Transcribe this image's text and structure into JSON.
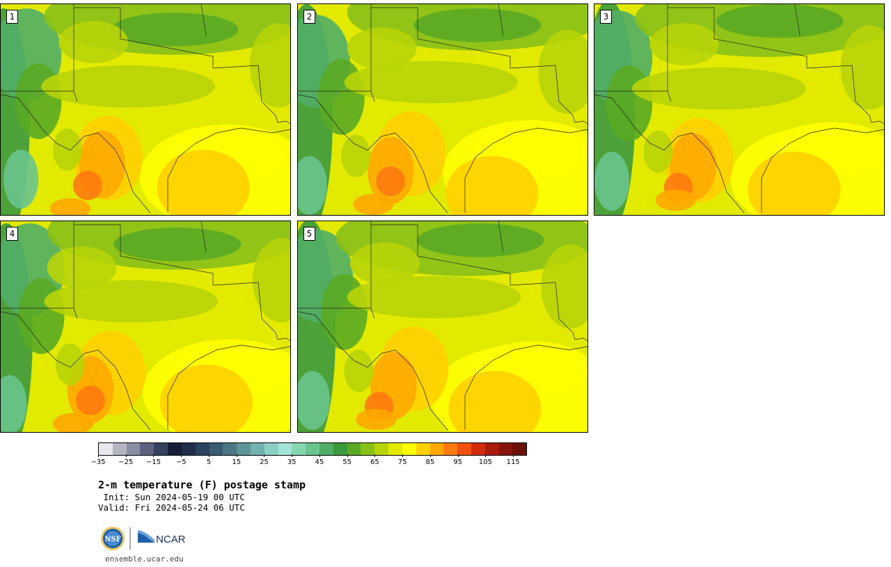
{
  "panels": [
    {
      "label": "1"
    },
    {
      "label": "2"
    },
    {
      "label": "3"
    },
    {
      "label": "4"
    },
    {
      "label": "5"
    }
  ],
  "colorbar": {
    "colors": [
      "#e6e8ee",
      "#b4b6c4",
      "#8a8ea2",
      "#5c6280",
      "#33405e",
      "#141e38",
      "#1e2e4a",
      "#2a4460",
      "#3a5c72",
      "#4a7884",
      "#5c9498",
      "#74b2b0",
      "#8ccdc4",
      "#a4e4d6",
      "#86d6b0",
      "#6ac48e",
      "#52ae66",
      "#3c9a3e",
      "#5aaa24",
      "#88c018",
      "#b8d408",
      "#e2ea00",
      "#ffff00",
      "#ffd000",
      "#ffa800",
      "#ff7a10",
      "#f05010",
      "#d02c0c",
      "#a81c0c",
      "#861408",
      "#6a1006"
    ],
    "tick_labels": [
      "−35",
      "−25",
      "−15",
      "−5",
      "5",
      "15",
      "25",
      "35",
      "45",
      "55",
      "65",
      "75",
      "85",
      "95",
      "105",
      "115"
    ]
  },
  "title": "2-m temperature (F) postage stamp",
  "init_line": " Init: Sun 2024-05-19 00 UTC",
  "valid_line": "Valid: Fri 2024-05-24 06 UTC",
  "logos": {
    "nsf": "NSF",
    "ncar": "NCAR"
  },
  "footer": "ensemble.ucar.edu"
}
